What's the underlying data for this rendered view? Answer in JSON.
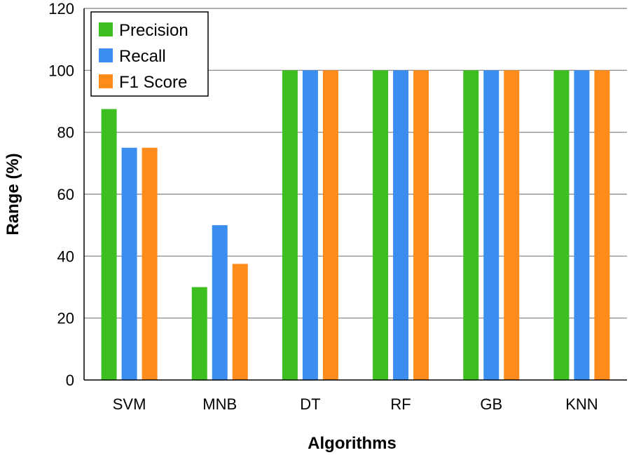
{
  "chart_data": {
    "type": "bar",
    "title": "",
    "xlabel": "Algorithms",
    "ylabel": "Range (%)",
    "ylim": [
      0,
      120
    ],
    "yticks": [
      "0",
      "20",
      "40",
      "60",
      "80",
      "100",
      "120"
    ],
    "categories": [
      "SVM",
      "MNB",
      "DT",
      "RF",
      "GB",
      "KNN"
    ],
    "series": [
      {
        "name": "Precision",
        "color": "#3cbf1f",
        "values": [
          87.5,
          30,
          100,
          100,
          100,
          100
        ]
      },
      {
        "name": "Recall",
        "color": "#3c8df0",
        "values": [
          75,
          50,
          100,
          100,
          100,
          100
        ]
      },
      {
        "name": "F1 Score",
        "color": "#ff8c1a",
        "values": [
          75,
          37.5,
          100,
          100,
          100,
          100
        ]
      }
    ],
    "grid": true,
    "legend_position": "top-left"
  }
}
